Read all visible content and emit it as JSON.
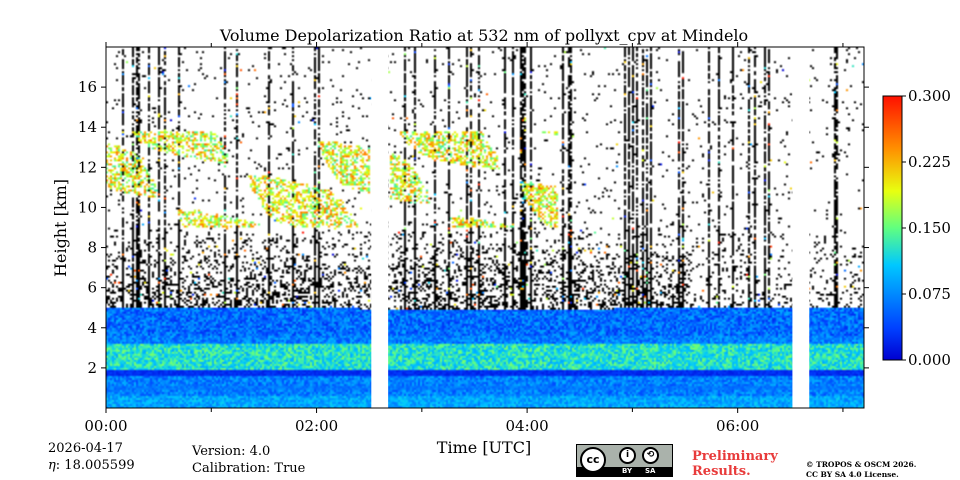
{
  "chart_data": {
    "type": "heatmap",
    "title": "Volume Depolarization Ratio at 532 nm of pollyxt_cpv at Mindelo",
    "xlabel": "Time [UTC]",
    "ylabel": "Height [km]",
    "xlim_hours": [
      0,
      7.2
    ],
    "ylim_km": [
      0,
      18
    ],
    "x_ticks": [
      {
        "value": 0,
        "label": "00:00"
      },
      {
        "value": 2,
        "label": "02:00"
      },
      {
        "value": 4,
        "label": "04:00"
      },
      {
        "value": 6,
        "label": "06:00"
      }
    ],
    "x_minor_ticks": [
      1,
      3,
      5,
      7
    ],
    "y_ticks": [
      {
        "value": 2,
        "label": "2"
      },
      {
        "value": 4,
        "label": "4"
      },
      {
        "value": 6,
        "label": "6"
      },
      {
        "value": 8,
        "label": "8"
      },
      {
        "value": 10,
        "label": "10"
      },
      {
        "value": 12,
        "label": "12"
      },
      {
        "value": 14,
        "label": "14"
      },
      {
        "value": 16,
        "label": "16"
      }
    ],
    "colorbar": {
      "min": 0.0,
      "max": 0.3,
      "ticks": [
        {
          "value": 0.0,
          "label": "0.000"
        },
        {
          "value": 0.075,
          "label": "0.075"
        },
        {
          "value": 0.15,
          "label": "0.150"
        },
        {
          "value": 0.225,
          "label": "0.225"
        },
        {
          "value": 0.3,
          "label": "0.300"
        }
      ],
      "colormap": "jet"
    },
    "data_gaps_hours": [
      [
        2.52,
        2.68
      ],
      [
        6.52,
        6.68
      ]
    ],
    "layers": [
      {
        "name": "boundary layer",
        "bottom_km": 0.0,
        "top_km": 5.0,
        "typical_value": 0.08
      },
      {
        "name": "dust layer",
        "bottom_km": 1.9,
        "top_km": 3.2,
        "typical_value": 0.12
      },
      {
        "name": "low depolarization band",
        "bottom_km": 1.6,
        "top_km": 1.9,
        "typical_value": 0.01
      },
      {
        "name": "cirrus clouds",
        "bottom_km": 9.0,
        "top_km": 14.0,
        "typical_value": 0.22
      }
    ]
  },
  "footer": {
    "date": "2026-04-17",
    "eta": ": 18.005599",
    "eta_symbol": "η",
    "version": "Version: 4.0",
    "calibration": "Calibration: True",
    "license_badge": {
      "cc": "cc",
      "by": "BY",
      "sa": "SA"
    },
    "preliminary_line1": "Preliminary",
    "preliminary_line2": "Results.",
    "copyright_line1": "© TROPOS & OSCM 2026.",
    "copyright_line2": "CC BY SA 4.0 License."
  }
}
